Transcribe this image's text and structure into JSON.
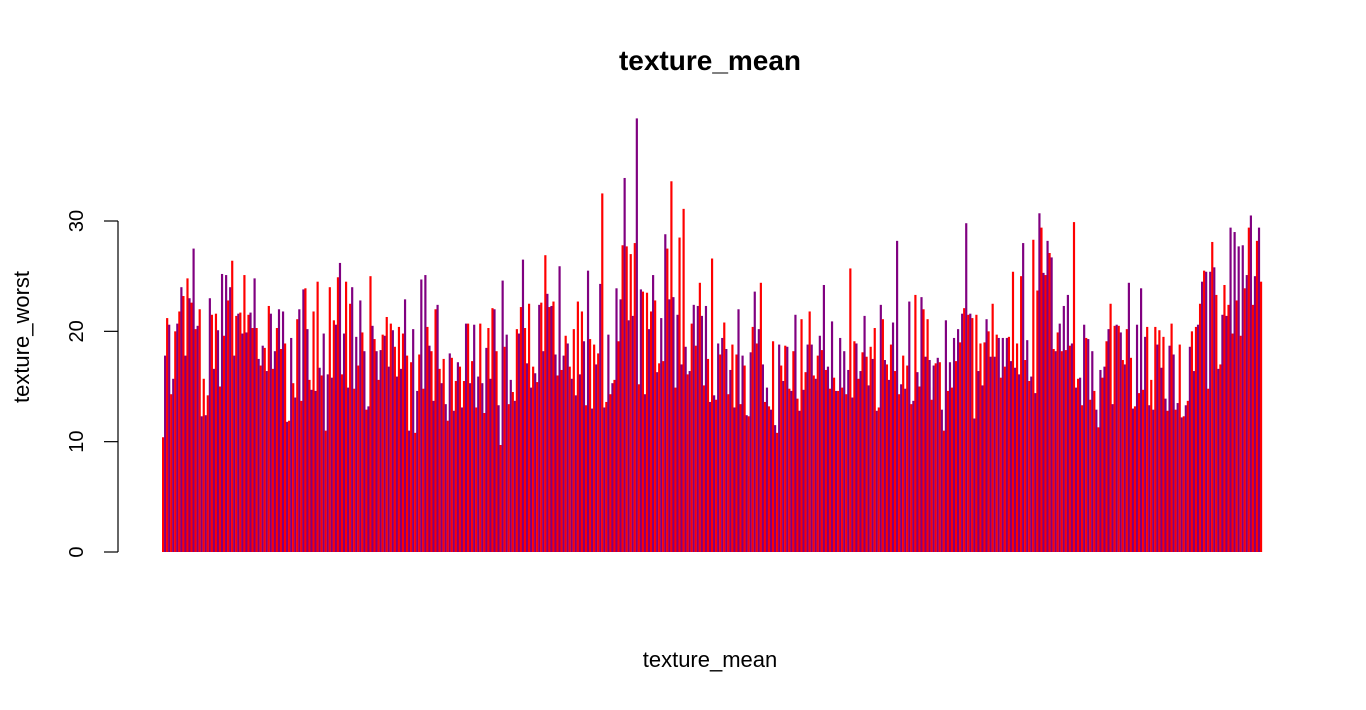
{
  "chart_data": {
    "type": "bar",
    "title": "texture_mean",
    "xlabel": "texture_mean",
    "ylabel": "texture_worst",
    "ylim": [
      0,
      39.5
    ],
    "y_ticks": [
      "0",
      "10",
      "20",
      "30"
    ],
    "y_tick_values": [
      0,
      10,
      20,
      30
    ],
    "grid": false,
    "legend": "none",
    "bar_colors": [
      "#ff0000",
      "#800080"
    ],
    "series": [
      {
        "values": [
          10.4,
          17.8,
          21.2,
          20.6,
          14.3,
          15.7,
          20.0,
          20.7,
          21.8,
          24.0,
          23.2,
          17.8,
          24.8,
          23.0,
          22.6,
          27.5,
          20.2,
          20.5,
          22.0,
          12.3,
          15.7,
          12.4,
          14.2,
          23.0,
          21.5,
          16.6,
          21.6,
          20.1,
          15.0,
          25.2,
          19.6,
          25.1,
          22.8,
          24.0,
          26.4,
          17.8,
          21.4,
          21.6,
          21.7,
          19.8,
          25.1,
          19.9,
          21.5,
          21.7,
          20.3,
          24.8,
          20.3,
          17.5,
          16.9,
          18.7,
          18.5,
          16.4,
          22.3,
          21.6,
          16.6,
          18.2,
          20.3,
          22.0,
          18.4,
          21.8,
          18.9,
          11.8,
          11.9,
          19.4,
          15.3,
          14.0,
          21.1,
          22.0,
          13.7,
          23.8,
          23.9,
          20.2,
          15.6,
          14.7,
          21.8,
          14.6,
          24.5,
          16.7,
          16.0,
          19.8,
          11.0,
          16.1,
          24.0,
          15.8,
          21.0,
          20.6,
          24.9,
          26.2,
          16.1,
          19.8,
          24.5,
          14.9,
          22.5,
          24.0,
          14.8,
          19.5,
          16.9,
          22.8,
          19.9,
          18.2,
          12.9,
          13.2,
          25.0,
          20.5,
          19.3,
          18.2,
          15.6,
          18.3,
          19.7,
          19.6,
          21.3,
          16.8,
          20.7,
          20.1,
          18.6,
          15.9,
          20.4,
          16.6,
          19.8,
          22.9,
          17.8,
          11.0,
          17.2,
          20.2,
          10.8,
          14.6,
          17.9,
          24.7,
          14.8,
          25.1,
          20.4,
          18.7,
          18.2,
          13.7,
          22.0,
          22.4,
          16.6,
          15.3,
          17.5,
          13.4,
          11.9,
          18.0,
          17.6,
          12.8,
          15.5,
          17.2,
          16.8,
          13.1,
          15.5,
          20.7,
          20.7,
          15.3,
          17.3,
          20.6,
          13.1,
          15.9,
          20.7,
          15.3,
          12.6,
          18.5,
          20.3,
          15.7,
          22.1,
          22.0,
          18.2,
          13.3,
          9.7,
          24.6,
          18.6,
          19.7,
          13.4,
          15.6,
          14.5,
          13.7,
          20.2,
          19.8,
          22.2,
          26.5,
          20.3,
          17.1,
          22.5,
          14.9,
          16.8,
          16.2,
          15.4,
          22.4,
          22.6,
          18.2,
          26.9,
          23.4,
          22.2,
          22.3,
          22.7,
          17.9,
          16.0,
          25.9,
          16.5,
          17.8,
          19.6,
          18.9,
          16.8,
          15.7,
          20.2,
          14.2,
          22.7,
          16.1,
          21.8,
          19.1,
          13.3,
          25.5,
          19.3,
          13.0,
          18.8,
          17.0,
          18.0,
          24.3,
          32.5,
          13.1,
          13.6,
          19.7,
          14.3,
          15.3,
          15.6,
          23.9,
          19.1,
          22.9,
          27.8,
          33.9,
          27.7,
          21.0,
          27.0,
          21.4,
          28.0,
          39.3,
          15.2,
          23.8,
          23.6,
          14.3,
          23.5,
          20.2,
          21.8,
          25.1,
          22.8,
          16.3,
          17.1,
          21.2,
          17.3,
          28.8,
          27.5,
          22.9,
          33.6,
          23.1,
          14.9,
          21.5,
          28.5,
          17.0,
          31.1,
          18.6,
          16.1,
          16.4,
          20.7,
          22.4,
          18.7,
          22.3,
          24.4,
          21.4,
          15.1,
          22.3,
          17.5,
          13.6,
          26.6,
          14.2,
          13.8,
          18.9,
          17.9,
          19.4,
          20.8,
          18.4,
          14.3,
          16.5,
          18.8,
          13.1,
          17.9,
          22.0,
          13.4,
          17.8,
          16.9,
          12.4,
          12.3,
          18.1,
          20.4,
          23.6,
          18.9,
          20.2,
          24.4,
          17.0,
          13.6,
          14.9,
          13.2,
          12.9,
          19.1,
          11.5,
          10.8,
          18.8,
          16.9,
          15.5,
          18.7,
          18.6,
          14.8,
          14.6,
          18.2,
          21.5,
          13.9,
          12.8,
          21.1,
          14.7,
          16.3,
          18.8,
          21.8,
          18.8,
          16.0,
          15.7,
          17.8,
          19.6,
          18.3,
          24.2,
          16.5,
          16.8,
          14.8,
          20.9,
          15.8,
          14.6,
          14.6,
          19.4,
          14.9,
          18.2,
          14.3,
          16.5,
          25.7,
          14.0,
          19.1,
          18.9,
          15.7,
          16.4,
          18.1,
          21.4,
          17.7,
          15.1,
          18.6,
          17.5,
          20.3,
          12.8,
          13.1,
          22.4,
          21.1,
          17.4,
          17.0,
          15.6,
          18.8,
          20.8,
          16.4,
          28.2,
          14.3,
          15.2,
          17.8,
          14.8,
          16.9,
          22.7,
          13.4,
          13.7,
          23.3,
          16.3,
          15.0,
          23.1,
          22.0,
          17.7,
          21.1,
          17.4,
          13.8,
          16.9,
          17.1,
          17.6,
          17.2,
          12.9,
          11.0,
          21.0,
          14.6,
          17.2,
          14.9,
          19.4,
          17.3,
          20.2,
          19.0,
          21.6,
          22.1,
          29.8,
          21.5,
          21.6,
          21.2,
          12.1,
          21.5,
          16.4,
          18.9,
          15.1,
          19.0,
          21.1,
          20.0,
          17.7,
          22.5,
          17.7,
          19.7,
          19.4,
          15.8,
          19.4,
          16.8,
          19.4,
          19.5,
          17.3,
          25.4,
          16.7,
          18.9,
          16.1,
          25.0,
          28.0,
          17.4,
          19.2,
          15.5,
          15.9,
          28.3,
          14.4,
          23.7,
          30.7,
          29.4,
          25.3,
          25.1,
          28.2,
          27.1,
          26.7,
          18.4,
          18.2,
          19.9,
          20.7,
          18.2,
          22.3,
          18.3,
          23.3,
          18.7,
          18.9,
          29.9,
          14.9,
          15.7,
          15.8,
          13.3,
          20.6,
          19.4,
          19.3,
          13.8,
          18.2,
          14.6,
          12.9,
          11.3,
          16.5,
          15.8,
          16.8,
          19.1,
          20.2,
          22.5,
          13.4,
          20.5,
          20.6,
          20.5,
          19.9,
          17.4,
          17.0,
          20.2,
          24.4,
          17.6,
          13.0,
          13.2,
          20.6,
          14.4,
          23.9,
          14.7,
          19.5,
          20.4,
          13.3,
          15.6,
          12.9,
          20.4,
          18.8,
          20.1,
          16.7,
          19.5,
          13.9,
          12.8,
          18.7,
          20.7,
          17.9,
          12.9,
          13.5,
          18.8,
          12.2,
          12.3,
          13.3,
          13.7,
          18.6,
          20.0,
          16.4,
          20.4,
          20.6,
          22.5,
          24.5,
          25.5,
          25.4,
          14.8,
          25.4,
          28.1,
          25.8,
          23.3,
          16.6,
          17.0,
          21.5,
          24.2,
          21.4,
          22.4,
          29.4,
          19.8,
          29.0,
          22.8,
          27.7,
          19.6,
          27.8,
          23.9,
          25.1,
          29.4,
          30.5,
          22.4,
          25.0,
          28.2,
          29.4,
          24.5
        ]
      }
    ]
  }
}
